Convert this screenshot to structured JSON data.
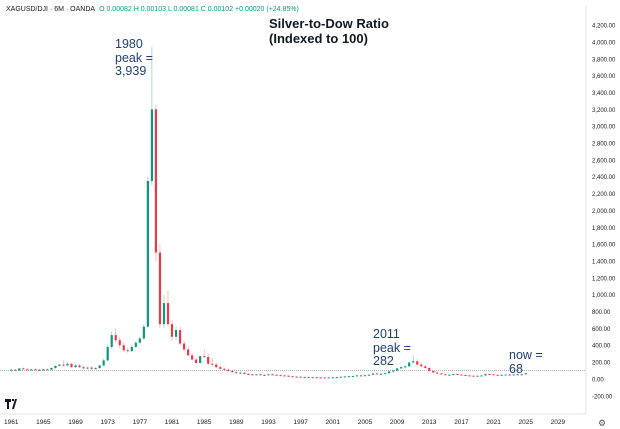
{
  "header": {
    "symbol": "XAGUSD/DJI · 6M · OANDA",
    "ohlc": "O 0.00082  H 0.00103  L 0.00081  C 0.00102  +0.00020 (+24.85%)"
  },
  "annotations": {
    "peak_1980": [
      "1980",
      "peak =",
      "3,939"
    ],
    "peak_2011": [
      "2011",
      "peak =",
      "282"
    ],
    "now": [
      "now =",
      "68"
    ]
  },
  "colors": {
    "up": "#089981",
    "down": "#f23645",
    "annotation": "#1f3f73",
    "baseline": "#9598a1"
  },
  "icons": {
    "logo": "tradingview-logo-icon",
    "settings": "gear-icon"
  },
  "chart_data": {
    "type": "candlestick",
    "title": "Silver-to-Dow Ratio\n(Indexed to 100)",
    "title_lines": [
      "Silver-to-Dow Ratio",
      "(Indexed to 100)"
    ],
    "xlabel": "",
    "ylabel": "",
    "x_ticks": [
      "1961",
      "1965",
      "1969",
      "1973",
      "1977",
      "1981",
      "1985",
      "1989",
      "1993",
      "1997",
      "2001",
      "2005",
      "2009",
      "2013",
      "2017",
      "2021",
      "2025",
      "2029"
    ],
    "y_ticks": [
      -200,
      0,
      200,
      400,
      600,
      800,
      1000,
      1200,
      1400,
      1600,
      1800,
      2000,
      2200,
      2400,
      2600,
      2800,
      3000,
      3200,
      3400,
      3600,
      3800,
      4000,
      4200
    ],
    "y_tick_labels": [
      "-200.00",
      "0.00",
      "200.00",
      "400.00",
      "600.00",
      "800.00",
      "1,000.00",
      "1,200.00",
      "1,400.00",
      "1,600.00",
      "1,800.00",
      "2,000.00",
      "2,200.00",
      "2,400.00",
      "2,600.00",
      "2,800.00",
      "3,000.00",
      "3,200.00",
      "3,400.00",
      "3,600.00",
      "3,800.00",
      "4,000.00",
      "4,200.00"
    ],
    "ylim": [
      -250,
      4260
    ],
    "xlim": [
      1960.6,
      2031.5
    ],
    "baseline": 100,
    "grid": false,
    "candles": [
      {
        "t": 1961.0,
        "o": 100,
        "h": 115,
        "l": 90,
        "c": 110
      },
      {
        "t": 1961.5,
        "o": 110,
        "h": 118,
        "l": 95,
        "c": 100
      },
      {
        "t": 1962.0,
        "o": 100,
        "h": 130,
        "l": 95,
        "c": 125
      },
      {
        "t": 1962.5,
        "o": 125,
        "h": 135,
        "l": 110,
        "c": 115
      },
      {
        "t": 1963.0,
        "o": 115,
        "h": 125,
        "l": 100,
        "c": 105
      },
      {
        "t": 1963.5,
        "o": 105,
        "h": 120,
        "l": 95,
        "c": 115
      },
      {
        "t": 1964.0,
        "o": 115,
        "h": 130,
        "l": 105,
        "c": 110
      },
      {
        "t": 1964.5,
        "o": 110,
        "h": 120,
        "l": 100,
        "c": 105
      },
      {
        "t": 1965.0,
        "o": 105,
        "h": 120,
        "l": 95,
        "c": 115
      },
      {
        "t": 1965.5,
        "o": 115,
        "h": 125,
        "l": 100,
        "c": 110
      },
      {
        "t": 1966.0,
        "o": 110,
        "h": 135,
        "l": 105,
        "c": 130
      },
      {
        "t": 1966.5,
        "o": 130,
        "h": 160,
        "l": 120,
        "c": 155
      },
      {
        "t": 1967.0,
        "o": 155,
        "h": 180,
        "l": 140,
        "c": 170
      },
      {
        "t": 1967.5,
        "o": 170,
        "h": 220,
        "l": 150,
        "c": 160
      },
      {
        "t": 1968.0,
        "o": 160,
        "h": 195,
        "l": 145,
        "c": 180
      },
      {
        "t": 1968.5,
        "o": 180,
        "h": 190,
        "l": 130,
        "c": 140
      },
      {
        "t": 1969.0,
        "o": 140,
        "h": 170,
        "l": 130,
        "c": 160
      },
      {
        "t": 1969.5,
        "o": 160,
        "h": 175,
        "l": 130,
        "c": 140
      },
      {
        "t": 1970.0,
        "o": 140,
        "h": 160,
        "l": 115,
        "c": 125
      },
      {
        "t": 1970.5,
        "o": 125,
        "h": 145,
        "l": 110,
        "c": 135
      },
      {
        "t": 1971.0,
        "o": 135,
        "h": 150,
        "l": 110,
        "c": 120
      },
      {
        "t": 1971.5,
        "o": 120,
        "h": 140,
        "l": 110,
        "c": 130
      },
      {
        "t": 1972.0,
        "o": 130,
        "h": 170,
        "l": 120,
        "c": 160
      },
      {
        "t": 1972.5,
        "o": 160,
        "h": 240,
        "l": 150,
        "c": 220
      },
      {
        "t": 1973.0,
        "o": 220,
        "h": 420,
        "l": 210,
        "c": 380
      },
      {
        "t": 1973.5,
        "o": 380,
        "h": 560,
        "l": 360,
        "c": 520
      },
      {
        "t": 1974.0,
        "o": 520,
        "h": 600,
        "l": 430,
        "c": 460
      },
      {
        "t": 1974.5,
        "o": 460,
        "h": 500,
        "l": 370,
        "c": 400
      },
      {
        "t": 1975.0,
        "o": 400,
        "h": 430,
        "l": 320,
        "c": 340
      },
      {
        "t": 1975.5,
        "o": 340,
        "h": 370,
        "l": 310,
        "c": 330
      },
      {
        "t": 1976.0,
        "o": 330,
        "h": 400,
        "l": 320,
        "c": 380
      },
      {
        "t": 1976.5,
        "o": 380,
        "h": 450,
        "l": 370,
        "c": 430
      },
      {
        "t": 1977.0,
        "o": 430,
        "h": 500,
        "l": 420,
        "c": 480
      },
      {
        "t": 1977.5,
        "o": 480,
        "h": 650,
        "l": 470,
        "c": 620
      },
      {
        "t": 1978.0,
        "o": 620,
        "h": 2400,
        "l": 600,
        "c": 2350
      },
      {
        "t": 1978.5,
        "o": 2350,
        "h": 3939,
        "l": 2300,
        "c": 3200
      },
      {
        "t": 1979.0,
        "o": 3200,
        "h": 3250,
        "l": 1400,
        "c": 1500
      },
      {
        "t": 1979.5,
        "o": 1500,
        "h": 1600,
        "l": 600,
        "c": 650
      },
      {
        "t": 1980.0,
        "o": 650,
        "h": 1000,
        "l": 600,
        "c": 900
      },
      {
        "t": 1980.5,
        "o": 900,
        "h": 1050,
        "l": 620,
        "c": 650
      },
      {
        "t": 1981.0,
        "o": 650,
        "h": 700,
        "l": 450,
        "c": 500
      },
      {
        "t": 1981.5,
        "o": 500,
        "h": 620,
        "l": 460,
        "c": 580
      },
      {
        "t": 1982.0,
        "o": 580,
        "h": 620,
        "l": 400,
        "c": 420
      },
      {
        "t": 1982.5,
        "o": 420,
        "h": 450,
        "l": 330,
        "c": 350
      },
      {
        "t": 1983.0,
        "o": 350,
        "h": 380,
        "l": 270,
        "c": 280
      },
      {
        "t": 1983.5,
        "o": 280,
        "h": 310,
        "l": 220,
        "c": 230
      },
      {
        "t": 1984.0,
        "o": 230,
        "h": 260,
        "l": 180,
        "c": 190
      },
      {
        "t": 1984.5,
        "o": 190,
        "h": 280,
        "l": 180,
        "c": 270
      },
      {
        "t": 1985.0,
        "o": 270,
        "h": 350,
        "l": 250,
        "c": 260
      },
      {
        "t": 1985.5,
        "o": 260,
        "h": 300,
        "l": 170,
        "c": 180
      },
      {
        "t": 1986.0,
        "o": 180,
        "h": 250,
        "l": 160,
        "c": 170
      },
      {
        "t": 1986.5,
        "o": 170,
        "h": 190,
        "l": 130,
        "c": 140
      },
      {
        "t": 1987.0,
        "o": 140,
        "h": 160,
        "l": 115,
        "c": 120
      },
      {
        "t": 1987.5,
        "o": 120,
        "h": 135,
        "l": 100,
        "c": 110
      },
      {
        "t": 1988.0,
        "o": 110,
        "h": 125,
        "l": 90,
        "c": 95
      },
      {
        "t": 1988.5,
        "o": 95,
        "h": 105,
        "l": 75,
        "c": 80
      },
      {
        "t": 1989.0,
        "o": 80,
        "h": 90,
        "l": 65,
        "c": 70
      },
      {
        "t": 1989.5,
        "o": 70,
        "h": 85,
        "l": 60,
        "c": 75
      },
      {
        "t": 1990.0,
        "o": 75,
        "h": 80,
        "l": 55,
        "c": 60
      },
      {
        "t": 1990.5,
        "o": 60,
        "h": 70,
        "l": 50,
        "c": 55
      },
      {
        "t": 1991.0,
        "o": 55,
        "h": 60,
        "l": 45,
        "c": 50
      },
      {
        "t": 1991.5,
        "o": 50,
        "h": 60,
        "l": 45,
        "c": 55
      },
      {
        "t": 1992.0,
        "o": 55,
        "h": 60,
        "l": 45,
        "c": 48
      },
      {
        "t": 1992.5,
        "o": 48,
        "h": 55,
        "l": 42,
        "c": 45
      },
      {
        "t": 1993.0,
        "o": 45,
        "h": 60,
        "l": 40,
        "c": 55
      },
      {
        "t": 1993.5,
        "o": 55,
        "h": 65,
        "l": 45,
        "c": 50
      },
      {
        "t": 1994.0,
        "o": 50,
        "h": 55,
        "l": 42,
        "c": 45
      },
      {
        "t": 1994.5,
        "o": 45,
        "h": 50,
        "l": 40,
        "c": 42
      },
      {
        "t": 1995.0,
        "o": 42,
        "h": 48,
        "l": 35,
        "c": 38
      },
      {
        "t": 1995.5,
        "o": 38,
        "h": 42,
        "l": 30,
        "c": 32
      },
      {
        "t": 1996.0,
        "o": 32,
        "h": 36,
        "l": 27,
        "c": 28
      },
      {
        "t": 1996.5,
        "o": 28,
        "h": 32,
        "l": 24,
        "c": 26
      },
      {
        "t": 1997.0,
        "o": 26,
        "h": 30,
        "l": 22,
        "c": 24
      },
      {
        "t": 1997.5,
        "o": 24,
        "h": 28,
        "l": 20,
        "c": 22
      },
      {
        "t": 1998.0,
        "o": 22,
        "h": 27,
        "l": 19,
        "c": 21
      },
      {
        "t": 1998.5,
        "o": 21,
        "h": 24,
        "l": 18,
        "c": 20
      },
      {
        "t": 1999.0,
        "o": 20,
        "h": 23,
        "l": 17,
        "c": 18
      },
      {
        "t": 1999.5,
        "o": 18,
        "h": 21,
        "l": 16,
        "c": 17
      },
      {
        "t": 2000.0,
        "o": 17,
        "h": 20,
        "l": 15,
        "c": 16
      },
      {
        "t": 2000.5,
        "o": 16,
        "h": 19,
        "l": 15,
        "c": 18
      },
      {
        "t": 2001.0,
        "o": 18,
        "h": 22,
        "l": 16,
        "c": 20
      },
      {
        "t": 2001.5,
        "o": 20,
        "h": 24,
        "l": 18,
        "c": 22
      },
      {
        "t": 2002.0,
        "o": 22,
        "h": 28,
        "l": 20,
        "c": 26
      },
      {
        "t": 2002.5,
        "o": 26,
        "h": 32,
        "l": 24,
        "c": 30
      },
      {
        "t": 2003.0,
        "o": 30,
        "h": 35,
        "l": 27,
        "c": 32
      },
      {
        "t": 2003.5,
        "o": 32,
        "h": 37,
        "l": 28,
        "c": 34
      },
      {
        "t": 2004.0,
        "o": 34,
        "h": 45,
        "l": 32,
        "c": 42
      },
      {
        "t": 2004.5,
        "o": 42,
        "h": 48,
        "l": 36,
        "c": 40
      },
      {
        "t": 2005.0,
        "o": 40,
        "h": 46,
        "l": 36,
        "c": 44
      },
      {
        "t": 2005.5,
        "o": 44,
        "h": 52,
        "l": 40,
        "c": 50
      },
      {
        "t": 2006.0,
        "o": 50,
        "h": 70,
        "l": 48,
        "c": 65
      },
      {
        "t": 2006.5,
        "o": 65,
        "h": 72,
        "l": 55,
        "c": 60
      },
      {
        "t": 2007.0,
        "o": 60,
        "h": 68,
        "l": 55,
        "c": 62
      },
      {
        "t": 2007.5,
        "o": 62,
        "h": 72,
        "l": 58,
        "c": 68
      },
      {
        "t": 2008.0,
        "o": 68,
        "h": 95,
        "l": 65,
        "c": 90
      },
      {
        "t": 2008.5,
        "o": 90,
        "h": 110,
        "l": 70,
        "c": 100
      },
      {
        "t": 2009.0,
        "o": 100,
        "h": 130,
        "l": 90,
        "c": 125
      },
      {
        "t": 2009.5,
        "o": 125,
        "h": 145,
        "l": 110,
        "c": 140
      },
      {
        "t": 2010.0,
        "o": 140,
        "h": 160,
        "l": 120,
        "c": 150
      },
      {
        "t": 2010.5,
        "o": 150,
        "h": 200,
        "l": 140,
        "c": 195
      },
      {
        "t": 2011.0,
        "o": 195,
        "h": 282,
        "l": 180,
        "c": 210
      },
      {
        "t": 2011.5,
        "o": 210,
        "h": 240,
        "l": 160,
        "c": 170
      },
      {
        "t": 2012.0,
        "o": 170,
        "h": 190,
        "l": 140,
        "c": 150
      },
      {
        "t": 2012.5,
        "o": 150,
        "h": 165,
        "l": 120,
        "c": 130
      },
      {
        "t": 2013.0,
        "o": 130,
        "h": 140,
        "l": 90,
        "c": 95
      },
      {
        "t": 2013.5,
        "o": 95,
        "h": 100,
        "l": 70,
        "c": 75
      },
      {
        "t": 2014.0,
        "o": 75,
        "h": 82,
        "l": 60,
        "c": 65
      },
      {
        "t": 2014.5,
        "o": 65,
        "h": 70,
        "l": 52,
        "c": 55
      },
      {
        "t": 2015.0,
        "o": 55,
        "h": 60,
        "l": 45,
        "c": 48
      },
      {
        "t": 2015.5,
        "o": 48,
        "h": 55,
        "l": 42,
        "c": 50
      },
      {
        "t": 2016.0,
        "o": 50,
        "h": 62,
        "l": 46,
        "c": 58
      },
      {
        "t": 2016.5,
        "o": 58,
        "h": 64,
        "l": 50,
        "c": 52
      },
      {
        "t": 2017.0,
        "o": 52,
        "h": 56,
        "l": 45,
        "c": 47
      },
      {
        "t": 2017.5,
        "o": 47,
        "h": 50,
        "l": 40,
        "c": 42
      },
      {
        "t": 2018.0,
        "o": 42,
        "h": 45,
        "l": 36,
        "c": 38
      },
      {
        "t": 2018.5,
        "o": 38,
        "h": 42,
        "l": 34,
        "c": 36
      },
      {
        "t": 2019.0,
        "o": 36,
        "h": 40,
        "l": 33,
        "c": 38
      },
      {
        "t": 2019.5,
        "o": 38,
        "h": 44,
        "l": 35,
        "c": 41
      },
      {
        "t": 2020.0,
        "o": 41,
        "h": 62,
        "l": 38,
        "c": 58
      },
      {
        "t": 2020.5,
        "o": 58,
        "h": 66,
        "l": 52,
        "c": 55
      },
      {
        "t": 2021.0,
        "o": 55,
        "h": 58,
        "l": 46,
        "c": 48
      },
      {
        "t": 2021.5,
        "o": 48,
        "h": 52,
        "l": 44,
        "c": 46
      },
      {
        "t": 2022.0,
        "o": 46,
        "h": 52,
        "l": 42,
        "c": 50
      },
      {
        "t": 2022.5,
        "o": 50,
        "h": 56,
        "l": 46,
        "c": 52
      },
      {
        "t": 2023.0,
        "o": 52,
        "h": 58,
        "l": 47,
        "c": 50
      },
      {
        "t": 2023.5,
        "o": 50,
        "h": 55,
        "l": 46,
        "c": 53
      },
      {
        "t": 2024.0,
        "o": 53,
        "h": 62,
        "l": 50,
        "c": 55
      },
      {
        "t": 2024.5,
        "o": 55,
        "h": 60,
        "l": 50,
        "c": 54
      },
      {
        "t": 2025.0,
        "o": 54,
        "h": 70,
        "l": 52,
        "c": 68
      }
    ],
    "annotations": [
      {
        "text": "1980 peak = 3,939",
        "x": 1978.5,
        "y": 3939
      },
      {
        "text": "2011 peak = 282",
        "x": 2011.0,
        "y": 282
      },
      {
        "text": "now = 68",
        "x": 2025.0,
        "y": 68
      }
    ]
  }
}
